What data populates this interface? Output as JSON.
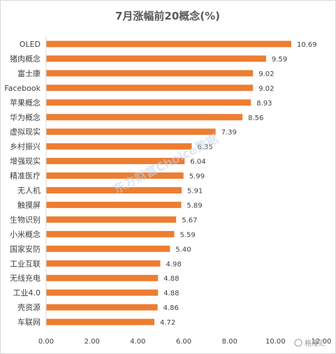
{
  "chart_data": {
    "type": "bar",
    "orientation": "horizontal",
    "title": "7月涨幅前20概念(%)",
    "categories": [
      "OLED",
      "猪肉概念",
      "富士康",
      "Facebook",
      "苹果概念",
      "华为概念",
      "虚拟现实",
      "乡村振兴",
      "增强现实",
      "精准医疗",
      "无人机",
      "触摸屏",
      "生物识别",
      "小米概念",
      "国家安防",
      "工业互联",
      "无线充电",
      "工业4.0",
      "壳资源",
      "车联网"
    ],
    "values": [
      10.69,
      9.59,
      9.02,
      9.02,
      8.93,
      8.56,
      7.39,
      6.35,
      6.04,
      5.99,
      5.91,
      5.89,
      5.67,
      5.59,
      5.4,
      4.98,
      4.88,
      4.88,
      4.86,
      4.72
    ],
    "value_labels": [
      "10.69",
      "9.59",
      "9.02",
      "9.02",
      "8.93",
      "8.56",
      "7.39",
      "6.35",
      "6.04",
      "5.99",
      "5.91",
      "5.89",
      "5.67",
      "5.59",
      "5.40",
      "4.98",
      "4.88",
      "4.88",
      "4.86",
      "4.72"
    ],
    "xlim": [
      0,
      12
    ],
    "x_ticks": [
      "0.00",
      "2.00",
      "4.00",
      "6.00",
      "8.00",
      "10.00",
      "12.00"
    ],
    "grid": false,
    "bar_color": "#ed7d31"
  },
  "watermark": {
    "corner_text": "格隆汇",
    "corner_icon": "gelonghui-logo-icon",
    "diagonal_text": "东方财富Choice数据"
  }
}
